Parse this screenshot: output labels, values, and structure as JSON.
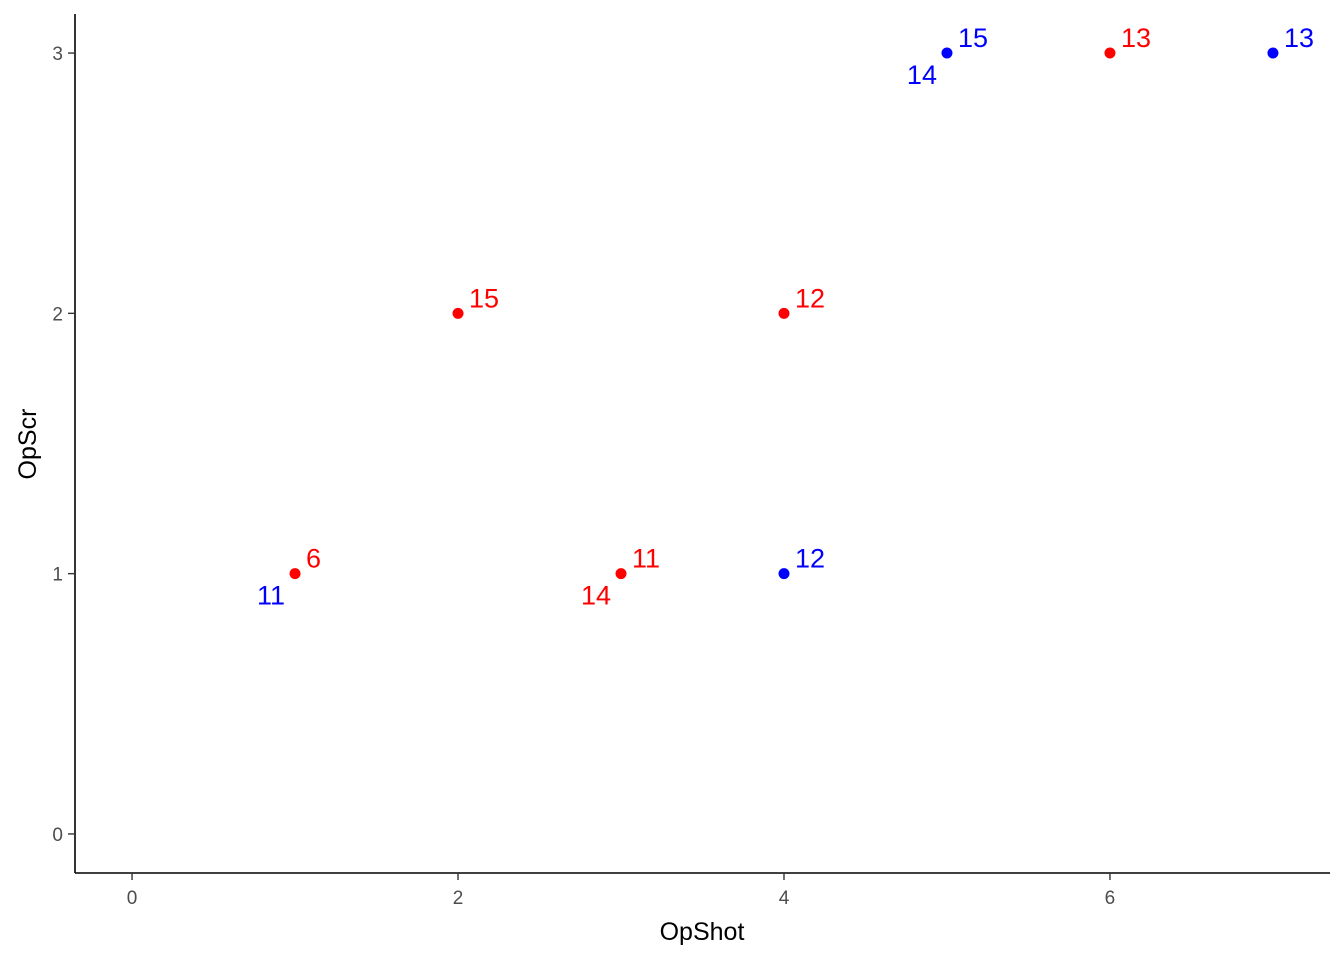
{
  "chart_data": {
    "type": "scatter",
    "title": "",
    "xlabel": "OpShot",
    "ylabel": "OpScr",
    "xlim": [
      -0.35,
      7.35
    ],
    "ylim": [
      -0.15,
      3.15
    ],
    "xticks": [
      0,
      2,
      4,
      6
    ],
    "yticks": [
      0,
      1,
      2,
      3
    ],
    "grid": false,
    "series": [
      {
        "color": "#ff0000",
        "points": [
          {
            "x": 1,
            "y": 1,
            "label": "6"
          },
          {
            "x": 2,
            "y": 2,
            "label": "15"
          },
          {
            "x": 3,
            "y": 1,
            "label": "11"
          },
          {
            "x": 3,
            "y": 1,
            "label": "14"
          },
          {
            "x": 4,
            "y": 2,
            "label": "12"
          },
          {
            "x": 6,
            "y": 3,
            "label": "13"
          }
        ]
      },
      {
        "color": "#0000ff",
        "points": [
          {
            "x": 1,
            "y": 1,
            "label": "11"
          },
          {
            "x": 4,
            "y": 1,
            "label": "12"
          },
          {
            "x": 5,
            "y": 3,
            "label": "15"
          },
          {
            "x": 5,
            "y": 3,
            "label": "14"
          },
          {
            "x": 7,
            "y": 3,
            "label": "13"
          }
        ]
      }
    ]
  }
}
